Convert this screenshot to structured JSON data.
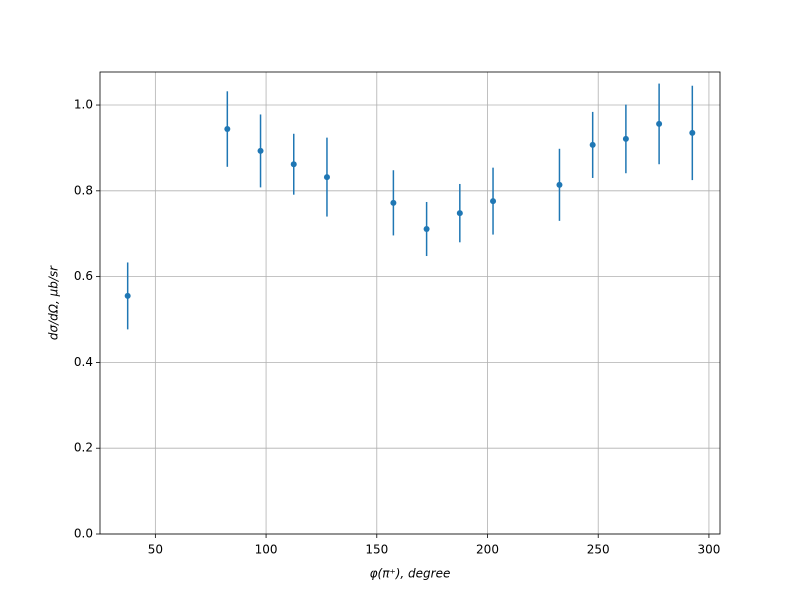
{
  "chart_data": {
    "type": "errorbar",
    "xlabel": "φ(π⁺), degree",
    "ylabel": "dσ/dΩ, μb/sr",
    "x": [
      37.5,
      82.5,
      97.5,
      112.5,
      127.5,
      157.5,
      172.5,
      187.5,
      202.5,
      232.5,
      247.5,
      262.5,
      277.5,
      292.5
    ],
    "values": [
      0.555,
      0.944,
      0.893,
      0.862,
      0.832,
      0.772,
      0.711,
      0.748,
      0.776,
      0.814,
      0.907,
      0.921,
      0.956,
      0.935
    ],
    "errors": [
      0.078,
      0.088,
      0.085,
      0.071,
      0.092,
      0.076,
      0.063,
      0.068,
      0.078,
      0.084,
      0.077,
      0.08,
      0.094,
      0.11
    ],
    "color": "#1f77b4",
    "xlim": [
      25,
      305
    ],
    "ylim": [
      0,
      1.077
    ],
    "xticks": [
      50,
      100,
      150,
      200,
      250,
      300
    ],
    "yticks": [
      {
        "value": 0,
        "label": "0.0"
      },
      0.2,
      0.4,
      0.6,
      0.8,
      {
        "value": 1,
        "label": "1.0"
      }
    ],
    "grid": true
  }
}
